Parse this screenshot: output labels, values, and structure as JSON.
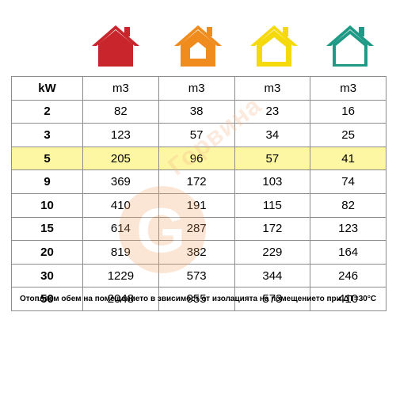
{
  "houses": [
    {
      "icon": "house-icon",
      "color": "#c9252c"
    },
    {
      "icon": "house-icon",
      "color": "#f08c1e"
    },
    {
      "icon": "house-icon",
      "color": "#f5d90a"
    },
    {
      "icon": "house-icon",
      "color": "#1f9a86"
    }
  ],
  "table": {
    "header": [
      "kW",
      "m3",
      "m3",
      "m3",
      "m3"
    ],
    "highlight_row": 2,
    "highlight_color": "#fdf7a3",
    "rows": [
      [
        "2",
        "82",
        "38",
        "23",
        "16"
      ],
      [
        "3",
        "123",
        "57",
        "34",
        "25"
      ],
      [
        "5",
        "205",
        "96",
        "57",
        "41"
      ],
      [
        "9",
        "369",
        "172",
        "103",
        "74"
      ],
      [
        "10",
        "410",
        "191",
        "115",
        "82"
      ],
      [
        "15",
        "614",
        "287",
        "172",
        "123"
      ],
      [
        "20",
        "819",
        "382",
        "229",
        "164"
      ],
      [
        "30",
        "1229",
        "573",
        "344",
        "246"
      ],
      [
        "50",
        "2048",
        "955",
        "573",
        "410"
      ]
    ]
  },
  "footnote": "Отопляем обем на помещението в звисимост от изолацията на помещението при ΔT=30°C",
  "watermark": {
    "logo_letter": "G",
    "text": "Горвина"
  }
}
